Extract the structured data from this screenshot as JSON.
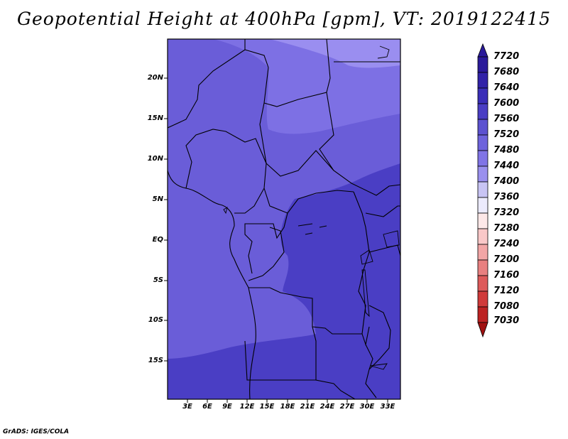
{
  "title": "Geopotential Height at 400hPa [gpm], VT: 2019122415",
  "credit": "GrADS: IGES/COLA",
  "lat_labels": [
    "20N",
    "15N",
    "10N",
    "5N",
    "EQ",
    "5S",
    "10S",
    "15S"
  ],
  "lon_labels": [
    "3E",
    "6E",
    "9E",
    "12E",
    "15E",
    "18E",
    "21E",
    "24E",
    "27E",
    "30E",
    "33E"
  ],
  "colorbar": {
    "labels": [
      "7720",
      "7680",
      "7640",
      "7600",
      "7560",
      "7520",
      "7480",
      "7440",
      "7400",
      "7360",
      "7320",
      "7280",
      "7240",
      "7200",
      "7160",
      "7120",
      "7080",
      "7030"
    ],
    "colors": [
      "#2a1a9a",
      "#3122a8",
      "#3a2eb8",
      "#4a3ec4",
      "#5c52d0",
      "#6e63dc",
      "#8074e6",
      "#9a90ee",
      "#c8c4f4",
      "#ecebfd",
      "#fde8e8",
      "#f9c8c8",
      "#f2a6a6",
      "#e88080",
      "#dd5a5a",
      "#d03a3a",
      "#bc2222",
      "#a01010"
    ]
  },
  "field_colors": {
    "c7480": "#9a8ef0",
    "c7520": "#7d70e4",
    "c7560": "#6a5dd8",
    "c7600": "#4a3ec4"
  }
}
